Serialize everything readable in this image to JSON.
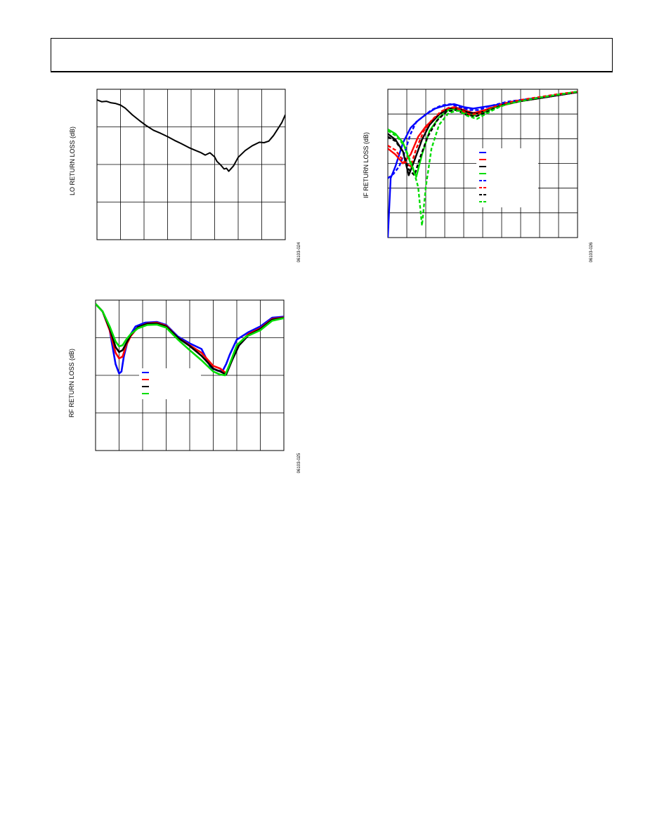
{
  "page": {
    "header": {
      "text": ""
    }
  },
  "chart_data": [
    {
      "id": "lo",
      "type": "line",
      "title": "",
      "xlabel": "",
      "ylabel": "LO RETURN LOSS (dB)",
      "figure_id": "06103-024",
      "xlim": [
        0,
        8
      ],
      "ylim": [
        -4,
        0
      ],
      "grid": true,
      "series": [
        {
          "color": "#000000",
          "dashed": false,
          "x": [
            0,
            0.2,
            0.4,
            0.6,
            0.8,
            1.0,
            1.2,
            1.5,
            1.8,
            2.1,
            2.4,
            2.7,
            3.0,
            3.3,
            3.6,
            3.9,
            4.2,
            4.4,
            4.6,
            4.8,
            5.0,
            5.1,
            5.25,
            5.4,
            5.5,
            5.6,
            5.8,
            6.0,
            6.3,
            6.6,
            6.9,
            7.1,
            7.3,
            7.5,
            7.7,
            7.85,
            8.0
          ],
          "y": [
            -0.28,
            -0.33,
            -0.32,
            -0.36,
            -0.38,
            -0.42,
            -0.5,
            -0.68,
            -0.83,
            -0.97,
            -1.09,
            -1.17,
            -1.26,
            -1.36,
            -1.45,
            -1.55,
            -1.63,
            -1.68,
            -1.75,
            -1.69,
            -1.8,
            -1.92,
            -2.01,
            -2.12,
            -2.1,
            -2.18,
            -2.04,
            -1.81,
            -1.63,
            -1.5,
            -1.41,
            -1.42,
            -1.38,
            -1.23,
            -1.04,
            -0.89,
            -0.68
          ]
        }
      ]
    },
    {
      "id": "if",
      "type": "line",
      "title": "",
      "xlabel": "",
      "ylabel": "IF RETURN LOSS (dB)",
      "figure_id": "06103-026",
      "xlim": [
        0,
        10
      ],
      "ylim": [
        -5,
        0
      ],
      "grid": true,
      "legend_position": "center-right",
      "series": [
        {
          "color": "#0000ff",
          "dashed": false,
          "x": [
            0,
            0.15,
            0.4,
            0.8,
            1.2,
            1.6,
            2.0,
            2.5,
            3.0,
            3.5,
            4.0,
            4.5,
            5.0,
            5.5,
            6.0,
            7.0,
            8.0,
            9.0,
            10.0
          ],
          "y": [
            -5.0,
            -3.0,
            -2.6,
            -1.8,
            -1.3,
            -1.05,
            -0.85,
            -0.65,
            -0.55,
            -0.5,
            -0.6,
            -0.65,
            -0.6,
            -0.55,
            -0.5,
            -0.38,
            -0.28,
            -0.18,
            -0.08
          ]
        },
        {
          "color": "#ff0000",
          "dashed": false,
          "x": [
            0,
            0.4,
            0.8,
            1.2,
            1.6,
            2.0,
            2.5,
            3.0,
            3.5,
            4.0,
            4.5,
            5.0,
            5.5,
            6.0,
            7.0,
            8.0,
            9.0,
            10.0
          ],
          "y": [
            -2.0,
            -2.2,
            -2.5,
            -2.2,
            -1.6,
            -1.25,
            -0.95,
            -0.7,
            -0.6,
            -0.7,
            -0.8,
            -0.72,
            -0.62,
            -0.55,
            -0.4,
            -0.3,
            -0.2,
            -0.1
          ]
        },
        {
          "color": "#000000",
          "dashed": false,
          "x": [
            0,
            0.4,
            0.8,
            1.1,
            1.4,
            1.8,
            2.2,
            2.7,
            3.2,
            3.7,
            4.2,
            4.7,
            5.2,
            5.7,
            6.2,
            7.0,
            8.0,
            9.0,
            10.0
          ],
          "y": [
            -1.5,
            -1.7,
            -2.1,
            -2.9,
            -2.4,
            -1.7,
            -1.2,
            -0.85,
            -0.65,
            -0.65,
            -0.78,
            -0.82,
            -0.72,
            -0.6,
            -0.5,
            -0.4,
            -0.3,
            -0.2,
            -0.1
          ]
        },
        {
          "color": "#00dd00",
          "dashed": false,
          "x": [
            0,
            0.4,
            0.8,
            1.2,
            1.5,
            1.8,
            2.2,
            2.7,
            3.2,
            3.7,
            4.2,
            4.7,
            5.2,
            5.7,
            6.2,
            7.0,
            8.0,
            9.0,
            10.0
          ],
          "y": [
            -1.35,
            -1.5,
            -1.8,
            -2.5,
            -2.95,
            -2.2,
            -1.4,
            -0.95,
            -0.7,
            -0.68,
            -0.85,
            -0.9,
            -0.75,
            -0.6,
            -0.5,
            -0.38,
            -0.28,
            -0.18,
            -0.08
          ]
        },
        {
          "color": "#0000ff",
          "dashed": true,
          "x": [
            0,
            0.3,
            0.6,
            0.9,
            1.2,
            1.5,
            1.9,
            2.3,
            2.8,
            3.3,
            3.8,
            4.3,
            4.8,
            5.3,
            5.8,
            6.3,
            7.0,
            8.0,
            9.0,
            10.0
          ],
          "y": [
            -3.0,
            -2.85,
            -2.6,
            -2.1,
            -1.5,
            -1.1,
            -0.9,
            -0.7,
            -0.55,
            -0.5,
            -0.6,
            -0.7,
            -0.7,
            -0.58,
            -0.5,
            -0.42,
            -0.36,
            -0.28,
            -0.18,
            -0.08
          ]
        },
        {
          "color": "#ff0000",
          "dashed": true,
          "x": [
            0,
            0.4,
            0.8,
            1.2,
            1.5,
            1.9,
            2.3,
            2.8,
            3.3,
            3.8,
            4.3,
            4.8,
            5.3,
            5.8,
            6.3,
            7.0,
            8.0,
            9.0,
            10.0
          ],
          "y": [
            -1.9,
            -2.05,
            -2.4,
            -2.6,
            -2.0,
            -1.4,
            -1.05,
            -0.75,
            -0.6,
            -0.68,
            -0.85,
            -0.82,
            -0.65,
            -0.55,
            -0.45,
            -0.36,
            -0.26,
            -0.16,
            -0.08
          ]
        },
        {
          "color": "#000000",
          "dashed": true,
          "x": [
            0,
            0.4,
            0.8,
            1.1,
            1.4,
            1.7,
            2.1,
            2.6,
            3.1,
            3.6,
            4.1,
            4.6,
            5.1,
            5.6,
            6.1,
            7.0,
            8.0,
            9.0,
            10.0
          ],
          "y": [
            -1.6,
            -1.75,
            -2.1,
            -2.7,
            -2.9,
            -2.3,
            -1.6,
            -1.05,
            -0.75,
            -0.7,
            -0.85,
            -0.92,
            -0.8,
            -0.65,
            -0.52,
            -0.4,
            -0.3,
            -0.2,
            -0.1
          ]
        },
        {
          "color": "#00dd00",
          "dashed": true,
          "x": [
            0,
            0.5,
            0.9,
            1.3,
            1.6,
            1.8,
            2.0,
            2.3,
            2.7,
            3.2,
            3.7,
            4.2,
            4.7,
            5.2,
            5.7,
            6.2,
            7.0,
            8.0,
            9.0,
            10.0
          ],
          "y": [
            -1.4,
            -1.6,
            -1.95,
            -2.6,
            -3.3,
            -4.6,
            -3.3,
            -2.0,
            -1.2,
            -0.8,
            -0.72,
            -0.9,
            -1.0,
            -0.82,
            -0.65,
            -0.52,
            -0.4,
            -0.28,
            -0.18,
            -0.08
          ]
        }
      ]
    },
    {
      "id": "rf",
      "type": "line",
      "title": "",
      "xlabel": "",
      "ylabel": "RF RETURN LOSS (dB)",
      "figure_id": "06103-025",
      "xlim": [
        0,
        8
      ],
      "ylim": [
        -4,
        0
      ],
      "grid": true,
      "legend_position": "center",
      "series": [
        {
          "color": "#0000ff",
          "dashed": false,
          "x": [
            0,
            0.3,
            0.6,
            0.85,
            1.0,
            1.1,
            1.2,
            1.4,
            1.7,
            2.1,
            2.6,
            3.0,
            3.5,
            4.0,
            4.5,
            4.9,
            5.2,
            5.4,
            5.55,
            5.7,
            6.0,
            6.5,
            7.0,
            7.5,
            8.0
          ],
          "y": [
            -0.1,
            -0.3,
            -0.8,
            -1.7,
            -1.95,
            -1.9,
            -1.5,
            -1.0,
            -0.7,
            -0.6,
            -0.58,
            -0.66,
            -0.97,
            -1.15,
            -1.3,
            -1.8,
            -1.88,
            -1.88,
            -1.7,
            -1.45,
            -1.05,
            -0.85,
            -0.7,
            -0.47,
            -0.44
          ]
        },
        {
          "color": "#ff0000",
          "dashed": false,
          "x": [
            0,
            0.3,
            0.6,
            0.85,
            1.0,
            1.15,
            1.3,
            1.5,
            1.8,
            2.2,
            2.6,
            3.0,
            3.5,
            4.0,
            4.5,
            5.0,
            5.3,
            5.55,
            5.8,
            6.1,
            6.5,
            7.0,
            7.5,
            8.0
          ],
          "y": [
            -0.1,
            -0.3,
            -0.8,
            -1.4,
            -1.55,
            -1.5,
            -1.2,
            -0.95,
            -0.72,
            -0.62,
            -0.6,
            -0.68,
            -1.0,
            -1.2,
            -1.4,
            -1.75,
            -1.82,
            -1.95,
            -1.55,
            -1.15,
            -0.9,
            -0.75,
            -0.5,
            -0.46
          ]
        },
        {
          "color": "#000000",
          "dashed": false,
          "x": [
            0,
            0.3,
            0.6,
            0.85,
            1.0,
            1.15,
            1.3,
            1.5,
            1.8,
            2.2,
            2.6,
            3.0,
            3.5,
            4.0,
            4.5,
            5.0,
            5.3,
            5.55,
            5.8,
            6.1,
            6.5,
            7.0,
            7.5,
            8.0
          ],
          "y": [
            -0.1,
            -0.3,
            -0.75,
            -1.25,
            -1.38,
            -1.33,
            -1.15,
            -0.92,
            -0.72,
            -0.63,
            -0.62,
            -0.7,
            -1.0,
            -1.22,
            -1.48,
            -1.82,
            -1.9,
            -1.98,
            -1.6,
            -1.2,
            -0.93,
            -0.77,
            -0.52,
            -0.47
          ]
        },
        {
          "color": "#00dd00",
          "dashed": false,
          "x": [
            0,
            0.3,
            0.6,
            0.85,
            1.0,
            1.15,
            1.3,
            1.5,
            1.8,
            2.2,
            2.6,
            3.0,
            3.5,
            4.0,
            4.5,
            5.0,
            5.3,
            5.5,
            5.7,
            6.0,
            6.4,
            7.0,
            7.5,
            8.0
          ],
          "y": [
            -0.1,
            -0.3,
            -0.7,
            -1.1,
            -1.23,
            -1.2,
            -1.05,
            -0.9,
            -0.75,
            -0.66,
            -0.65,
            -0.73,
            -1.05,
            -1.33,
            -1.6,
            -1.9,
            -1.98,
            -2.0,
            -1.7,
            -1.2,
            -0.97,
            -0.8,
            -0.55,
            -0.48
          ]
        }
      ]
    }
  ]
}
